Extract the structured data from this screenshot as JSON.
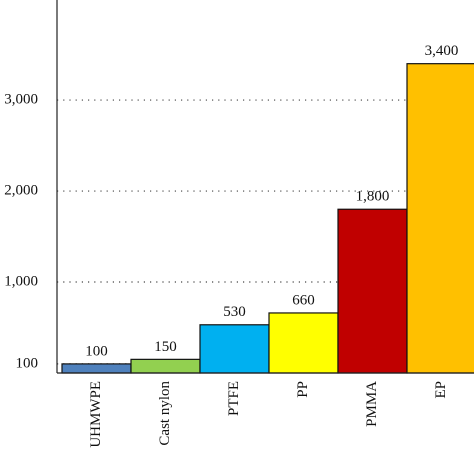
{
  "chart_data": {
    "type": "bar",
    "categories": [
      "UHMWPE",
      "Cast nylon",
      "PTFE",
      "PP",
      "PMMA",
      "EP"
    ],
    "values": [
      100,
      150,
      530,
      660,
      1800,
      3400
    ],
    "value_labels": [
      "100",
      "150",
      "530",
      "660",
      "1,800",
      "3,400"
    ],
    "colors": [
      "#4f81bd",
      "#92d050",
      "#00b0f0",
      "#ffff00",
      "#c00000",
      "#ffc000"
    ],
    "ylim": [
      0,
      4100
    ],
    "yticks": [
      {
        "value": 100,
        "label": "100"
      },
      {
        "value": 1000,
        "label": "1,000"
      },
      {
        "value": 2000,
        "label": "2,000"
      },
      {
        "value": 3000,
        "label": "3,000"
      }
    ],
    "grid": true
  }
}
